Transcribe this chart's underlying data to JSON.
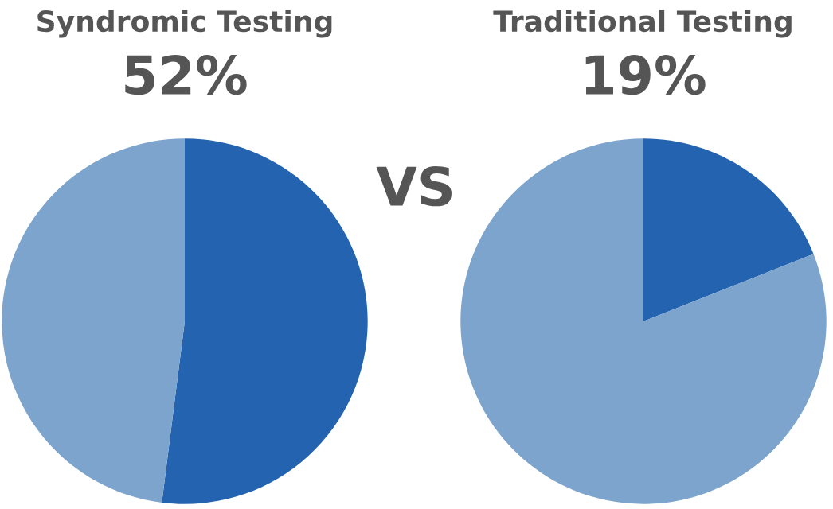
{
  "chart_data": [
    {
      "type": "pie",
      "title": "Syndromic Testing",
      "subtitle": "52%",
      "categories": [
        null,
        null
      ],
      "values": [
        52,
        48
      ],
      "colors": [
        "#2463b0",
        "#7ca4cd"
      ],
      "annotations": [
        "VS"
      ]
    },
    {
      "type": "pie",
      "title": "Traditional Testing",
      "subtitle": "19%",
      "categories": [
        null,
        null
      ],
      "values": [
        19,
        81
      ],
      "colors": [
        "#2463b0",
        "#7ca4cd"
      ]
    }
  ]
}
